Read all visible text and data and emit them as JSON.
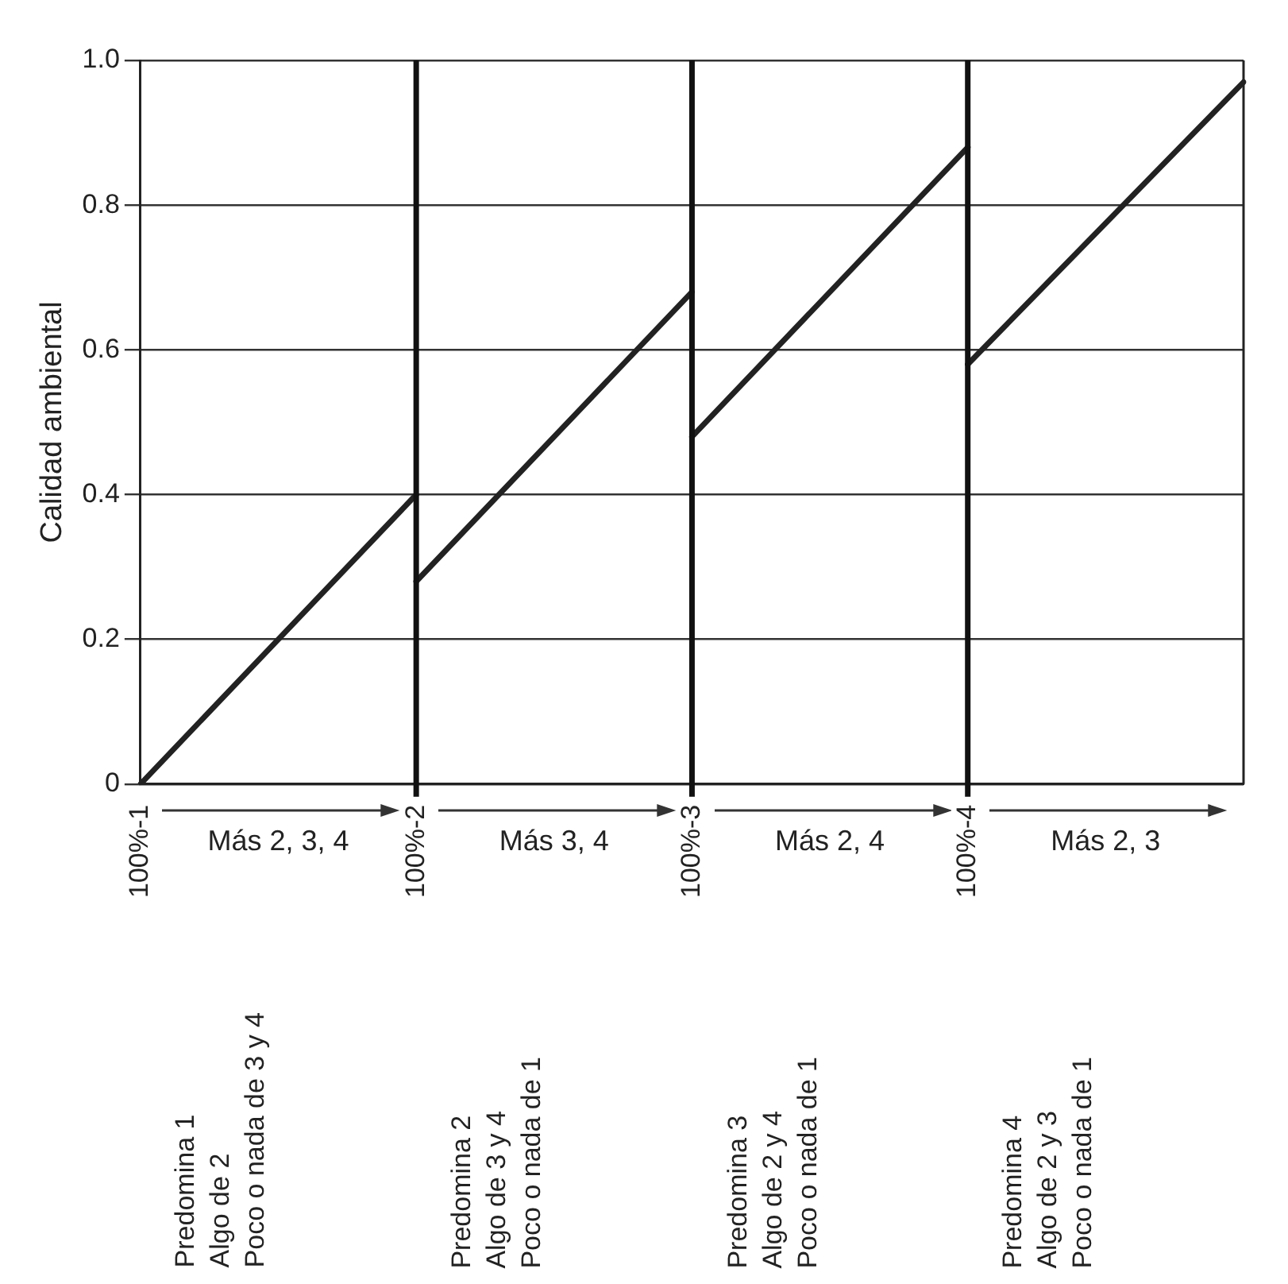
{
  "chart_data": {
    "type": "line",
    "ylabel": "Calidad ambiental",
    "categories": [
      "100%-1",
      "100%-2",
      "100%-3",
      "100%-4",
      null
    ],
    "ylim": [
      0,
      1
    ],
    "yticks": [
      0,
      0.2,
      0.4,
      0.6,
      0.8,
      {
        "value": 1,
        "label": "1.0"
      }
    ],
    "series": [
      {
        "color": "#222222",
        "values": [
          0,
          0.4,
          null,
          null,
          null
        ]
      },
      {
        "color": "#222222",
        "values": [
          null,
          0.28,
          0.68,
          null,
          null
        ]
      },
      {
        "color": "#222222",
        "values": [
          null,
          null,
          0.48,
          0.88,
          null
        ]
      },
      {
        "color": "#222222",
        "values": [
          null,
          null,
          null,
          0.58,
          0.97
        ]
      }
    ],
    "ref_lines": [
      {
        "axis": "x",
        "value": "100%-2",
        "color": "#111111"
      },
      {
        "axis": "x",
        "value": "100%-3",
        "color": "#111111"
      },
      {
        "axis": "x",
        "value": "100%-4",
        "color": "#111111"
      }
    ],
    "annotations": [
      "Más 2, 3, 4",
      "Más 3, 4",
      "Más 2, 4",
      "Más 2, 3",
      "Predomina 1\nAlgo de 2\nPoco o nada de 3 y 4",
      "Predomina 2\nAlgo de 3 y 4\nPoco o nada de 1",
      "Predomina 3\nAlgo de 2 y 4\nPoco o nada de 1",
      "Predomina 4\nAlgo de 2 y 3\nPoco o nada de 1"
    ],
    "grid": "y",
    "legend": false,
    "marker": "none",
    "line_style": "solid"
  }
}
